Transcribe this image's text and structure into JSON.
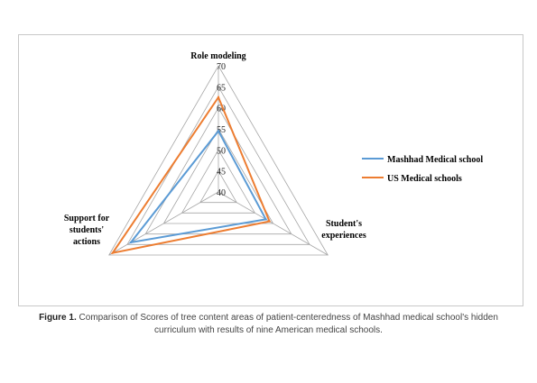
{
  "caption": {
    "label": "Figure 1.",
    "text": "Comparison of Scores of tree content areas of patient-centeredness of Mashhad medical school's hidden curriculum with results of nine American medical schools."
  },
  "chart_data": {
    "type": "radar",
    "axes": [
      [
        "Role modeling"
      ],
      [
        "Student's",
        "experiences"
      ],
      [
        "Support  for",
        "students'",
        "actions"
      ]
    ],
    "scale": {
      "min": 40,
      "max": 70,
      "step": 5
    },
    "ticks": [
      "40",
      "45",
      "50",
      "55",
      "60",
      "65",
      "70"
    ],
    "series": [
      {
        "name": "Mashhad Medical school",
        "color": "#5b9bd5",
        "values": [
          54.5,
          53,
          64
        ]
      },
      {
        "name": "US Medical schools",
        "color": "#ed7d31",
        "values": [
          62.5,
          54,
          69
        ]
      }
    ],
    "legend_position": "right"
  }
}
